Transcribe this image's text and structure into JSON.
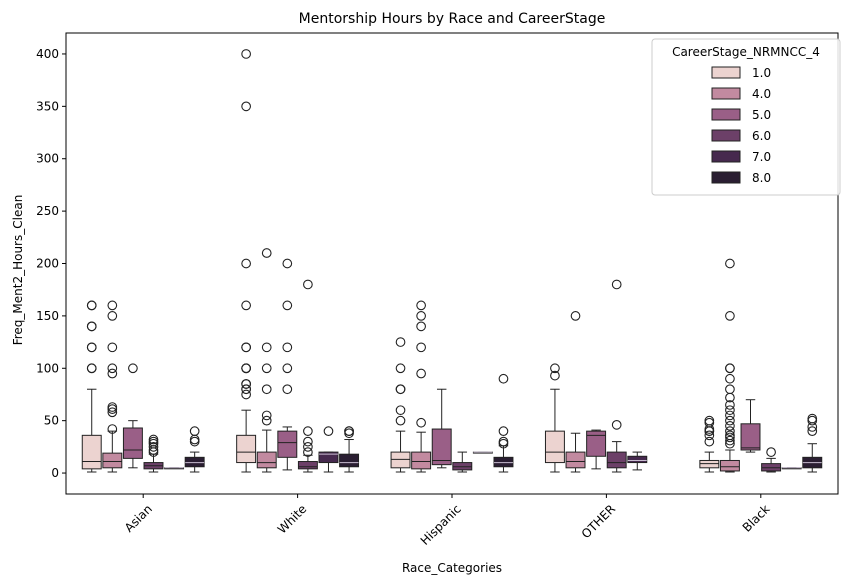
{
  "chart_data": {
    "type": "boxplot",
    "title": "Mentorship Hours by Race and CareerStage",
    "xlabel": "Race_Categories",
    "ylabel": "Freq_Ment2_Hours_Clean",
    "ylim": [
      -20,
      420
    ],
    "yticks": [
      0,
      50,
      100,
      150,
      200,
      250,
      300,
      350,
      400
    ],
    "categories": [
      "Asian",
      "White",
      "Hispanic",
      "OTHER",
      "Black"
    ],
    "legend": {
      "title": "CareerStage_NRMNCC_4",
      "placement": "top-right",
      "entries": [
        "1.0",
        "4.0",
        "5.0",
        "6.0",
        "7.0",
        "8.0"
      ]
    },
    "series": [
      {
        "name": "1.0",
        "color": "#ecd3d0",
        "boxes": [
          {
            "min": 1,
            "q1": 4,
            "median": 11,
            "q3": 36,
            "max": 80,
            "outliers": [
              100,
              100,
              120,
              120,
              140,
              140,
              160,
              160
            ]
          },
          {
            "min": 1,
            "q1": 10,
            "median": 20,
            "q3": 36,
            "max": 60,
            "outliers": [
              75,
              80,
              80,
              85,
              85,
              100,
              100,
              100,
              120,
              120,
              160,
              200,
              350,
              400
            ]
          },
          {
            "min": 1,
            "q1": 5,
            "median": 13,
            "q3": 20,
            "max": 40,
            "outliers": [
              50,
              60,
              80,
              80,
              100,
              125
            ]
          },
          {
            "min": 1,
            "q1": 10,
            "median": 20,
            "q3": 40,
            "max": 80,
            "outliers": [
              93,
              100
            ]
          },
          {
            "min": 1,
            "q1": 5,
            "median": 9,
            "q3": 12,
            "max": 20,
            "outliers": [
              30,
              36,
              40,
              40,
              42,
              48,
              50
            ]
          }
        ]
      },
      {
        "name": "4.0",
        "color": "#c28aa0",
        "boxes": [
          {
            "min": 1,
            "q1": 5,
            "median": 11,
            "q3": 19,
            "max": 40,
            "outliers": [
              42,
              58,
              61,
              63,
              95,
              100,
              120,
              150,
              160
            ]
          },
          {
            "min": 1,
            "q1": 5,
            "median": 10,
            "q3": 20,
            "max": 41,
            "outliers": [
              50,
              55,
              80,
              100,
              120,
              210
            ]
          },
          {
            "min": 1,
            "q1": 4,
            "median": 11,
            "q3": 20,
            "max": 39,
            "outliers": [
              48,
              95,
              120,
              140,
              150,
              160
            ]
          },
          {
            "min": 1,
            "q1": 5,
            "median": 11,
            "q3": 20,
            "max": 38,
            "outliers": [
              150
            ]
          },
          {
            "min": 1,
            "q1": 2,
            "median": 6,
            "q3": 12,
            "max": 22,
            "outliers": [
              28,
              31,
              34,
              36,
              40,
              45,
              50,
              55,
              60,
              65,
              72,
              80,
              90,
              100,
              100,
              150,
              200
            ]
          }
        ]
      },
      {
        "name": "5.0",
        "color": "#9a5f87",
        "boxes": [
          {
            "min": 5,
            "q1": 14,
            "median": 22,
            "q3": 43,
            "max": 50,
            "outliers": [
              100
            ]
          },
          {
            "min": 3,
            "q1": 15,
            "median": 29,
            "q3": 40,
            "max": 44,
            "outliers": [
              80,
              100,
              120,
              160,
              200
            ]
          },
          {
            "min": 5,
            "q1": 8,
            "median": 12,
            "q3": 42,
            "max": 80,
            "outliers": []
          },
          {
            "min": 4,
            "q1": 16,
            "median": 36,
            "q3": 40,
            "max": 41,
            "outliers": []
          },
          {
            "min": 20,
            "q1": 22,
            "median": 24,
            "q3": 47,
            "max": 70,
            "outliers": []
          }
        ]
      },
      {
        "name": "6.0",
        "color": "#6c4068",
        "boxes": [
          {
            "min": 1,
            "q1": 4,
            "median": 7,
            "q3": 10,
            "max": 18,
            "outliers": [
              20,
              22,
              25,
              28,
              30,
              32
            ]
          },
          {
            "min": 1,
            "q1": 4,
            "median": 6,
            "q3": 11,
            "max": 17,
            "outliers": [
              20,
              25,
              30,
              40,
              180
            ]
          },
          {
            "min": 1,
            "q1": 3,
            "median": 6,
            "q3": 10,
            "max": 20,
            "outliers": []
          },
          {
            "min": 1,
            "q1": 5,
            "median": 10,
            "q3": 20,
            "max": 30,
            "outliers": [
              46,
              180
            ]
          },
          {
            "min": 1,
            "q1": 2,
            "median": 5,
            "q3": 9,
            "max": 14,
            "outliers": [
              20
            ]
          }
        ]
      },
      {
        "name": "7.0",
        "color": "#46294e",
        "boxes": [
          {
            "min": 5,
            "q1": 5,
            "median": 5,
            "q3": 5,
            "max": 5,
            "outliers": []
          },
          {
            "min": 1,
            "q1": 10,
            "median": 18,
            "q3": 20,
            "max": 20,
            "outliers": [
              40
            ]
          },
          {
            "min": 20,
            "q1": 20,
            "median": 20,
            "q3": 20,
            "max": 20,
            "outliers": []
          },
          {
            "min": 3,
            "q1": 10,
            "median": 12,
            "q3": 16,
            "max": 20,
            "outliers": []
          },
          {
            "min": 5,
            "q1": 5,
            "median": 5,
            "q3": 5,
            "max": 5,
            "outliers": []
          }
        ]
      },
      {
        "name": "8.0",
        "color": "#2a1e32",
        "boxes": [
          {
            "min": 1,
            "q1": 6,
            "median": 10,
            "q3": 15,
            "max": 20,
            "outliers": [
              30,
              32,
              40
            ]
          },
          {
            "min": 1,
            "q1": 6,
            "median": 10,
            "q3": 18,
            "max": 32,
            "outliers": [
              38,
              40,
              40
            ]
          },
          {
            "min": 1,
            "q1": 6,
            "median": 10,
            "q3": 15,
            "max": 26,
            "outliers": [
              28,
              30,
              40,
              90
            ]
          },
          null,
          {
            "min": 1,
            "q1": 5,
            "median": 10,
            "q3": 15,
            "max": 28,
            "outliers": [
              40,
              44,
              50,
              52
            ]
          }
        ]
      }
    ]
  }
}
